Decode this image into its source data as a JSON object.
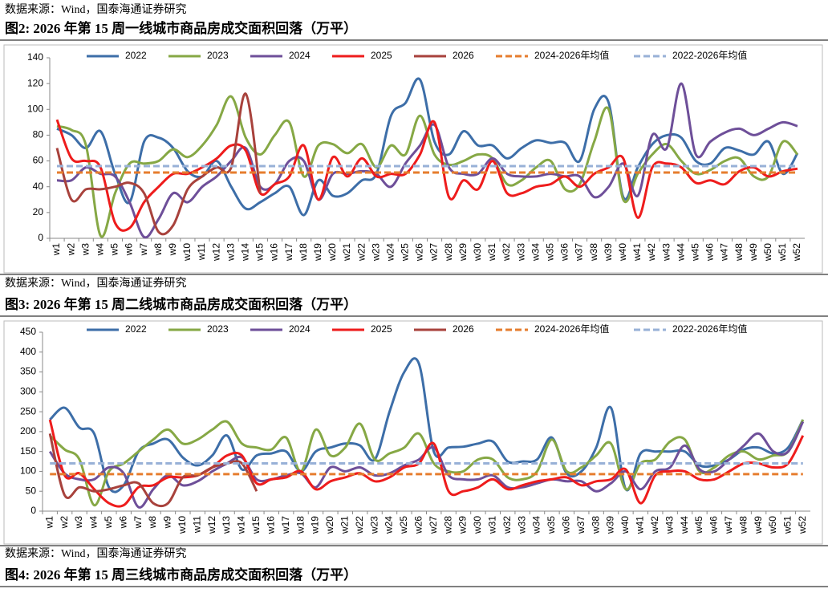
{
  "header": {
    "source": "数据来源：Wind，国泰海通证券研究"
  },
  "chart_data": [
    {
      "type": "line",
      "title": "图2: 2026 年第 15 周一线城市商品房成交面积回落（万平）",
      "source": "数据来源：Wind，国泰海通证券研究",
      "categories": [
        "w1",
        "w2",
        "w3",
        "w4",
        "w5",
        "w6",
        "w7",
        "w8",
        "w9",
        "w10",
        "w11",
        "w12",
        "w13",
        "w14",
        "w15",
        "w16",
        "w17",
        "w18",
        "w19",
        "w20",
        "w21",
        "w22",
        "w23",
        "w24",
        "w25",
        "w26",
        "w27",
        "w28",
        "w29",
        "w30",
        "w31",
        "w32",
        "w33",
        "w34",
        "w35",
        "w36",
        "w37",
        "w38",
        "w39",
        "w40",
        "w41",
        "w42",
        "w43",
        "w44",
        "w45",
        "w46",
        "w47",
        "w48",
        "w49",
        "w50",
        "w51",
        "w52"
      ],
      "ylim": [
        0,
        140
      ],
      "yticks": [
        0,
        20,
        40,
        60,
        80,
        100,
        120,
        140
      ],
      "grid": false,
      "legend": "top",
      "smooth": true,
      "series": [
        {
          "name": "2022",
          "color": "#3d6ea8",
          "values": [
            85,
            80,
            70,
            83,
            50,
            28,
            75,
            78,
            70,
            52,
            48,
            60,
            40,
            23,
            28,
            35,
            40,
            18,
            45,
            33,
            35,
            45,
            50,
            95,
            105,
            123,
            75,
            65,
            83,
            72,
            72,
            62,
            70,
            76,
            74,
            74,
            60,
            100,
            105,
            32,
            55,
            73,
            80,
            78,
            60,
            58,
            70,
            68,
            65,
            75,
            50,
            66
          ]
        },
        {
          "name": "2023",
          "color": "#86a845",
          "values": [
            87,
            84,
            72,
            2,
            35,
            58,
            58,
            60,
            69,
            63,
            72,
            88,
            110,
            78,
            65,
            80,
            90,
            48,
            72,
            73,
            66,
            73,
            55,
            72,
            65,
            95,
            65,
            57,
            60,
            65,
            62,
            42,
            45,
            55,
            60,
            38,
            42,
            75,
            100,
            30,
            50,
            65,
            73,
            60,
            50,
            53,
            60,
            62,
            48,
            48,
            75,
            65
          ]
        },
        {
          "name": "2024",
          "color": "#6e4f99",
          "values": [
            45,
            45,
            55,
            50,
            48,
            28,
            1,
            15,
            35,
            28,
            40,
            48,
            60,
            70,
            40,
            42,
            60,
            60,
            30,
            50,
            50,
            52,
            50,
            40,
            58,
            72,
            88,
            55,
            50,
            50,
            62,
            50,
            48,
            48,
            50,
            48,
            48,
            32,
            40,
            58,
            33,
            80,
            70,
            120,
            65,
            75,
            82,
            85,
            80,
            85,
            90,
            87
          ]
        },
        {
          "name": "2025",
          "color": "#ee1c1c",
          "values": [
            92,
            62,
            60,
            55,
            12,
            8,
            28,
            40,
            50,
            50,
            55,
            62,
            72,
            68,
            35,
            42,
            48,
            72,
            30,
            63,
            48,
            62,
            48,
            50,
            50,
            65,
            90,
            32,
            45,
            38,
            60,
            35,
            35,
            40,
            42,
            48,
            40,
            50,
            55,
            62,
            16,
            55,
            58,
            55,
            43,
            45,
            42,
            52,
            55,
            48,
            52,
            54
          ]
        },
        {
          "name": "2026",
          "color": "#a8423c",
          "values": [
            70,
            30,
            38,
            38,
            40,
            43,
            35,
            5,
            10,
            38,
            48,
            55,
            55,
            112,
            35,
            null,
            null,
            null,
            null,
            null,
            null,
            null,
            null,
            null,
            null,
            null,
            null,
            null,
            null,
            null,
            null,
            null,
            null,
            null,
            null,
            null,
            null,
            null,
            null,
            null,
            null,
            null,
            null,
            null,
            null,
            null,
            null,
            null,
            null,
            null,
            null,
            null
          ]
        },
        {
          "name": "2024-2026年均值",
          "color": "#e67d2e",
          "style": "dashed",
          "values": [
            51,
            51,
            51,
            51,
            51,
            51,
            51,
            51,
            51,
            51,
            51,
            51,
            51,
            51,
            51,
            51,
            51,
            51,
            51,
            51,
            51,
            51,
            51,
            51,
            51,
            51,
            51,
            51,
            51,
            51,
            51,
            51,
            51,
            51,
            51,
            51,
            51,
            51,
            51,
            51,
            51,
            51,
            51,
            51,
            51,
            51,
            51,
            51,
            51,
            51,
            51,
            51
          ]
        },
        {
          "name": "2022-2026年均值",
          "color": "#98b1d7",
          "style": "dashed",
          "values": [
            56,
            56,
            56,
            56,
            56,
            56,
            56,
            56,
            56,
            56,
            56,
            56,
            56,
            56,
            56,
            56,
            56,
            56,
            56,
            56,
            56,
            56,
            56,
            56,
            56,
            56,
            56,
            56,
            56,
            56,
            56,
            56,
            56,
            56,
            56,
            56,
            56,
            56,
            56,
            56,
            56,
            56,
            56,
            56,
            56,
            56,
            56,
            56,
            56,
            56,
            56,
            56
          ]
        }
      ]
    },
    {
      "type": "line",
      "title": "图3: 2026 年第 15 周二线城市商品房成交面积回落（万平）",
      "source": "数据来源：Wind，国泰海通证券研究",
      "categories": [
        "w1",
        "w2",
        "w3",
        "w4",
        "w5",
        "w6",
        "w7",
        "w8",
        "w9",
        "w10",
        "w11",
        "w12",
        "w13",
        "w14",
        "w15",
        "w16",
        "w17",
        "w18",
        "w19",
        "w20",
        "w21",
        "w22",
        "w23",
        "w24",
        "w25",
        "w26",
        "w27",
        "w28",
        "w29",
        "w30",
        "w31",
        "w32",
        "w33",
        "w34",
        "w35",
        "w36",
        "w37",
        "w38",
        "w39",
        "w40",
        "w41",
        "w42",
        "w43",
        "w44",
        "w45",
        "w46",
        "w47",
        "w48",
        "w49",
        "w50",
        "w51",
        "w52"
      ],
      "ylim": [
        0,
        450
      ],
      "yticks": [
        0,
        50,
        100,
        150,
        200,
        250,
        300,
        350,
        400,
        450
      ],
      "grid": false,
      "legend": "top",
      "smooth": true,
      "series": [
        {
          "name": "2022",
          "color": "#3d6ea8",
          "values": [
            230,
            260,
            210,
            195,
            60,
            65,
            150,
            170,
            180,
            135,
            115,
            140,
            190,
            105,
            140,
            145,
            150,
            100,
            150,
            160,
            170,
            165,
            130,
            250,
            350,
            370,
            150,
            160,
            162,
            170,
            175,
            125,
            125,
            130,
            185,
            95,
            100,
            160,
            260,
            55,
            145,
            150,
            150,
            150,
            115,
            115,
            130,
            155,
            160,
            145,
            160,
            230
          ]
        },
        {
          "name": "2023",
          "color": "#86a845",
          "values": [
            190,
            155,
            130,
            15,
            100,
            120,
            150,
            180,
            205,
            170,
            180,
            205,
            225,
            170,
            160,
            155,
            185,
            100,
            205,
            140,
            160,
            220,
            130,
            145,
            160,
            195,
            120,
            100,
            100,
            130,
            130,
            85,
            80,
            100,
            180,
            100,
            110,
            140,
            170,
            55,
            120,
            130,
            175,
            180,
            100,
            110,
            140,
            150,
            130,
            140,
            150,
            230
          ]
        },
        {
          "name": "2024",
          "color": "#6e4f99",
          "values": [
            150,
            95,
            80,
            80,
            110,
            95,
            10,
            55,
            90,
            65,
            75,
            100,
            120,
            135,
            80,
            80,
            90,
            95,
            60,
            110,
            100,
            110,
            90,
            95,
            115,
            130,
            160,
            90,
            80,
            80,
            90,
            60,
            60,
            70,
            80,
            75,
            75,
            50,
            70,
            100,
            55,
            100,
            110,
            165,
            105,
            100,
            130,
            165,
            195,
            150,
            150,
            225
          ]
        },
        {
          "name": "2025",
          "color": "#ee1c1c",
          "values": [
            230,
            90,
            95,
            55,
            20,
            15,
            60,
            65,
            85,
            85,
            90,
            110,
            140,
            140,
            70,
            80,
            85,
            100,
            55,
            75,
            85,
            95,
            75,
            85,
            110,
            120,
            170,
            50,
            50,
            60,
            80,
            55,
            65,
            75,
            80,
            85,
            65,
            75,
            80,
            105,
            20,
            90,
            100,
            100,
            80,
            80,
            100,
            120,
            120,
            110,
            120,
            190
          ]
        },
        {
          "name": "2026",
          "color": "#a8423c",
          "values": [
            195,
            40,
            60,
            50,
            55,
            65,
            70,
            20,
            20,
            85,
            90,
            110,
            120,
            120,
            50,
            null,
            null,
            null,
            null,
            null,
            null,
            null,
            null,
            null,
            null,
            null,
            null,
            null,
            null,
            null,
            null,
            null,
            null,
            null,
            null,
            null,
            null,
            null,
            null,
            null,
            null,
            null,
            null,
            null,
            null,
            null,
            null,
            null,
            null,
            null,
            null,
            null
          ]
        },
        {
          "name": "2024-2026年均值",
          "color": "#e67d2e",
          "style": "dashed",
          "values": [
            93,
            93,
            93,
            93,
            93,
            93,
            93,
            93,
            93,
            93,
            93,
            93,
            93,
            93,
            93,
            93,
            93,
            93,
            93,
            93,
            93,
            93,
            93,
            93,
            93,
            93,
            93,
            93,
            93,
            93,
            93,
            93,
            93,
            93,
            93,
            93,
            93,
            93,
            93,
            93,
            93,
            93,
            93,
            93,
            93,
            93,
            93,
            93,
            93,
            93,
            93,
            93
          ]
        },
        {
          "name": "2022-2026年均值",
          "color": "#98b1d7",
          "style": "dashed",
          "values": [
            120,
            120,
            120,
            120,
            120,
            120,
            120,
            120,
            120,
            120,
            120,
            120,
            120,
            120,
            120,
            120,
            120,
            120,
            120,
            120,
            120,
            120,
            120,
            120,
            120,
            120,
            120,
            120,
            120,
            120,
            120,
            120,
            120,
            120,
            120,
            120,
            120,
            120,
            120,
            120,
            120,
            120,
            120,
            120,
            120,
            120,
            120,
            120,
            120,
            120,
            120,
            120
          ]
        }
      ]
    }
  ],
  "footer": {
    "title": "图4: 2026 年第 15 周三线城市商品房成交面积回落（万平）"
  }
}
